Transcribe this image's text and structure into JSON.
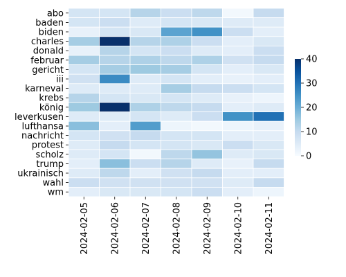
{
  "chart_data": {
    "type": "heatmap",
    "title": "",
    "xlabel": "",
    "ylabel": "",
    "columns": [
      "2024-02-05",
      "2024-02-06",
      "2024-02-07",
      "2024-02-08",
      "2024-02-09",
      "2024-02-10",
      "2024-02-11"
    ],
    "rows": [
      "abo",
      "baden",
      "biden",
      "charles",
      "donald",
      "februar",
      "gericht",
      "iii",
      "karneval",
      "krebs",
      "könig",
      "leverkusen",
      "lufthansa",
      "nachricht",
      "protest",
      "scholz",
      "trump",
      "ukrainisch",
      "wahl",
      "wm"
    ],
    "values": [
      [
        7,
        7,
        12,
        9,
        11,
        1,
        10
      ],
      [
        7,
        9,
        5,
        7,
        6,
        5,
        5
      ],
      [
        3,
        7,
        6,
        22,
        25,
        9,
        4
      ],
      [
        14,
        40,
        12,
        13,
        9,
        4,
        6
      ],
      [
        3,
        12,
        7,
        9,
        5,
        4,
        9
      ],
      [
        14,
        12,
        13,
        11,
        13,
        8,
        10
      ],
      [
        7,
        14,
        15,
        14,
        7,
        4,
        6
      ],
      [
        8,
        26,
        5,
        7,
        4,
        3,
        4
      ],
      [
        5,
        5,
        5,
        14,
        10,
        9,
        7
      ],
      [
        12,
        7,
        6,
        7,
        5,
        3,
        2
      ],
      [
        15,
        40,
        13,
        11,
        10,
        4,
        5
      ],
      [
        5,
        5,
        7,
        5,
        9,
        25,
        30
      ],
      [
        17,
        4,
        23,
        2,
        1,
        2,
        3
      ],
      [
        7,
        8,
        10,
        7,
        7,
        4,
        4
      ],
      [
        5,
        10,
        7,
        7,
        6,
        9,
        6
      ],
      [
        5,
        7,
        1,
        11,
        16,
        5,
        6
      ],
      [
        4,
        17,
        9,
        12,
        5,
        3,
        10
      ],
      [
        5,
        11,
        4,
        8,
        10,
        4,
        4
      ],
      [
        9,
        8,
        8,
        8,
        8,
        5,
        10
      ],
      [
        4,
        6,
        6,
        7,
        9,
        4,
        2
      ]
    ],
    "colorbar": {
      "min": 0,
      "max": 40,
      "ticks": [
        0,
        10,
        20,
        30,
        40
      ]
    },
    "colormap": "Blues",
    "grid": false,
    "legend": "colorbar-right"
  }
}
